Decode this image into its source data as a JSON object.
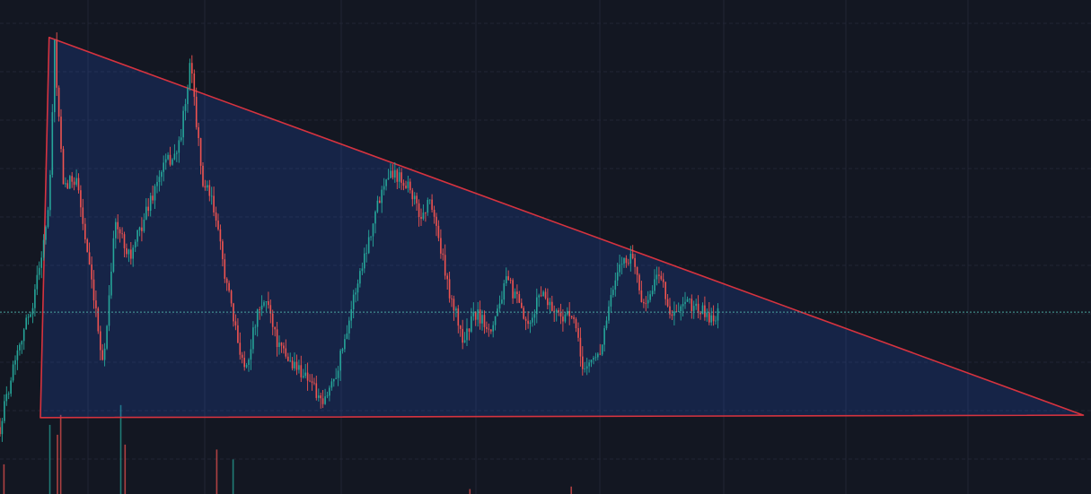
{
  "chart_data": {
    "type": "candlestick",
    "title": "",
    "xlabel": "",
    "ylabel": "",
    "grid": true,
    "colors": {
      "background": "#131722",
      "grid": "#222634",
      "up": "#26a69a",
      "down": "#ef5350",
      "triangle_stroke": "#d6333f",
      "triangle_fill": "#2962ff",
      "price_line": "#4fb3a9"
    },
    "ylim": [
      0,
      100
    ],
    "xlim": [
      0,
      100
    ],
    "current_price": 36.2,
    "pattern": {
      "type": "descending-triangle",
      "vertices": [
        [
          4.5,
          94
        ],
        [
          3.7,
          14
        ],
        [
          99.3,
          14.5
        ]
      ]
    },
    "price_path": [
      [
        0,
        12
      ],
      [
        1.5,
        28
      ],
      [
        3,
        38
      ],
      [
        4.5,
        58
      ],
      [
        5,
        92
      ],
      [
        5.8,
        62
      ],
      [
        7,
        65
      ],
      [
        8.5,
        40
      ],
      [
        9.5,
        25
      ],
      [
        10.5,
        55
      ],
      [
        12,
        48
      ],
      [
        13.5,
        58
      ],
      [
        15,
        67
      ],
      [
        16.3,
        70
      ],
      [
        17,
        80
      ],
      [
        17.5,
        89
      ],
      [
        18.5,
        64
      ],
      [
        19.5,
        59
      ],
      [
        20.5,
        46
      ],
      [
        21.5,
        33
      ],
      [
        22.5,
        24
      ],
      [
        23.5,
        35
      ],
      [
        24.5,
        39
      ],
      [
        25.5,
        29
      ],
      [
        26.5,
        26
      ],
      [
        27.5,
        24
      ],
      [
        28.5,
        22
      ],
      [
        29.5,
        16
      ],
      [
        31,
        25
      ],
      [
        32.5,
        40
      ],
      [
        34.5,
        58
      ],
      [
        35.5,
        66
      ],
      [
        36.5,
        65
      ],
      [
        37.5,
        63
      ],
      [
        38.5,
        56
      ],
      [
        39.5,
        60
      ],
      [
        41,
        42
      ],
      [
        42.5,
        30
      ],
      [
        43.5,
        36
      ],
      [
        45,
        33
      ],
      [
        46.5,
        43
      ],
      [
        47.5,
        38
      ],
      [
        48.5,
        32
      ],
      [
        49.5,
        41
      ],
      [
        51,
        36
      ],
      [
        52.5,
        35
      ],
      [
        53.5,
        24
      ],
      [
        55,
        28
      ],
      [
        56,
        39
      ],
      [
        57,
        47
      ],
      [
        58,
        48
      ],
      [
        59,
        37
      ],
      [
        60.5,
        45
      ],
      [
        61.5,
        35
      ],
      [
        63,
        38
      ],
      [
        64,
        37
      ],
      [
        65,
        35
      ],
      [
        66,
        36
      ]
    ],
    "volume_bars": [
      [
        0.3,
        6
      ],
      [
        4.5,
        14
      ],
      [
        5.2,
        12
      ],
      [
        5.5,
        16
      ],
      [
        11,
        18
      ],
      [
        11.4,
        10
      ],
      [
        19.8,
        9
      ],
      [
        21.3,
        7
      ],
      [
        43,
        1
      ],
      [
        52.3,
        1.5
      ]
    ]
  }
}
